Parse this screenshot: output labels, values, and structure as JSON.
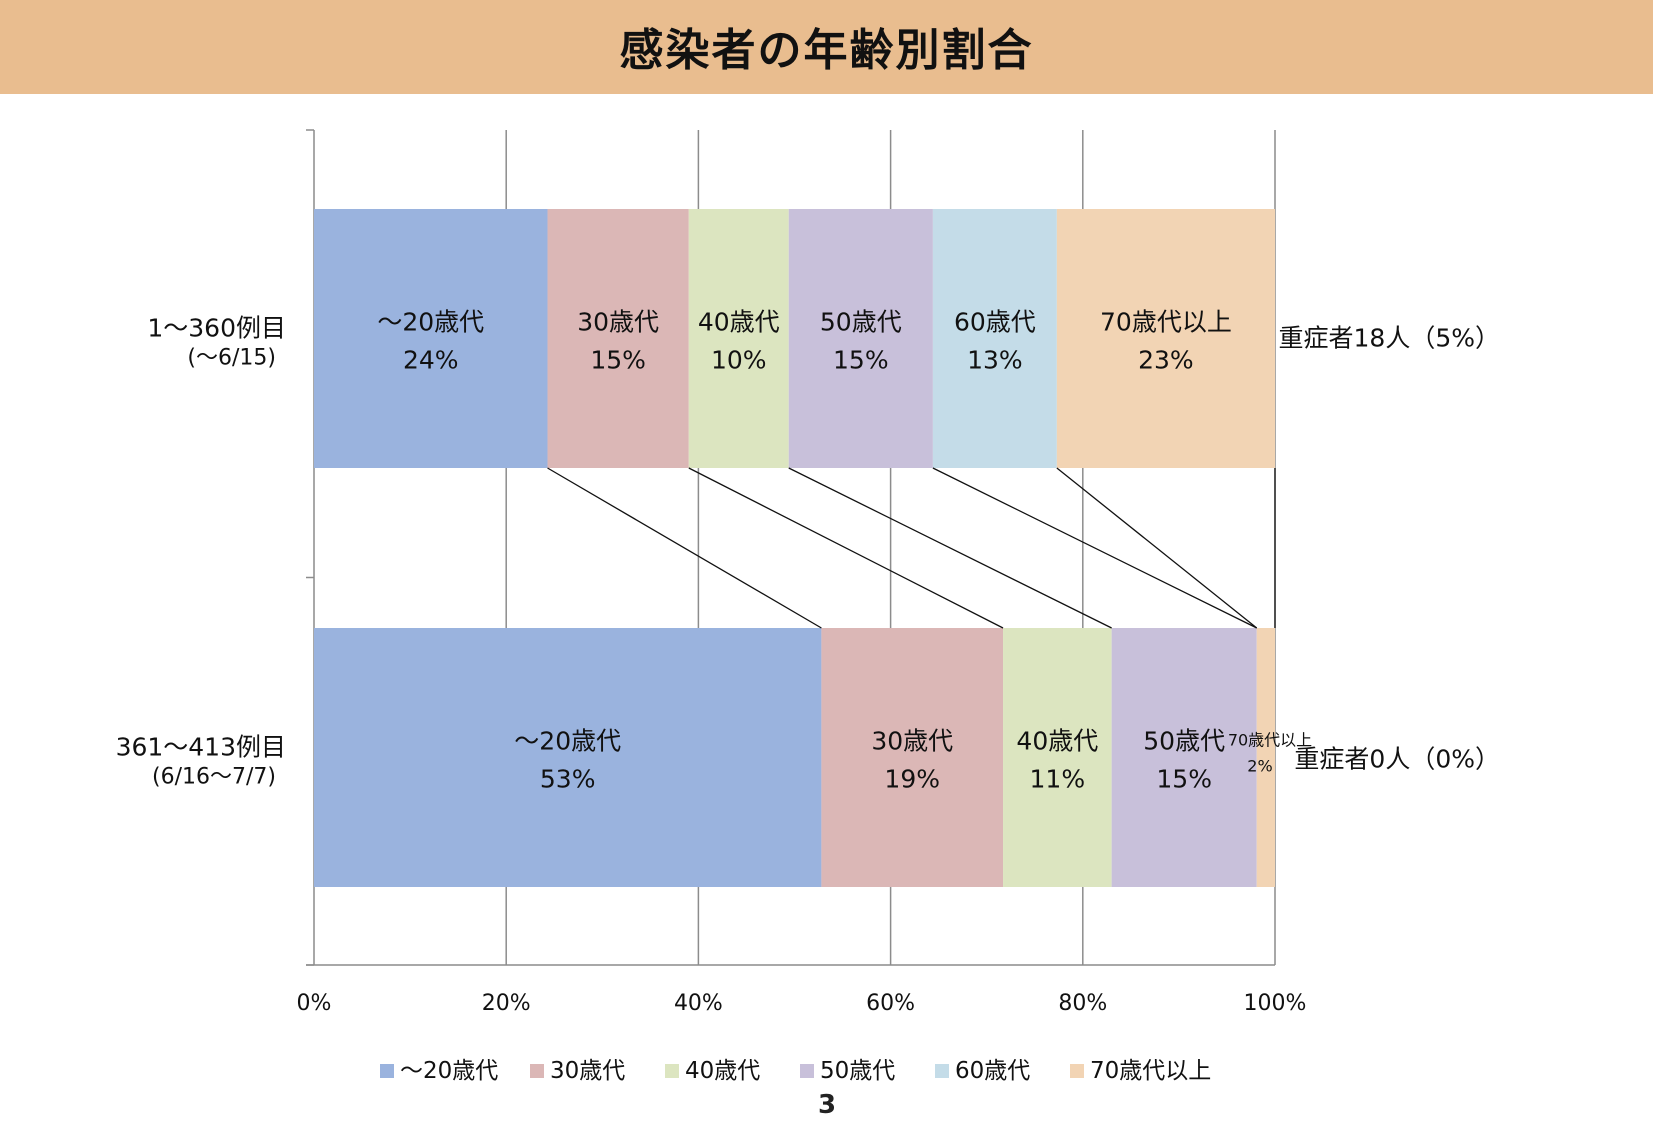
{
  "title": "感染者の年齢別割合",
  "page_number": "3",
  "colors": {
    "～20歳代": "#9ab3de",
    "30歳代": "#dbb7b6",
    "40歳代": "#dce5c0",
    "50歳代": "#c8c0da",
    "60歳代": "#c4dce8",
    "70歳代以上": "#f2d4b4"
  },
  "chart_data": {
    "type": "bar",
    "orientation": "horizontal",
    "stacked": "percent",
    "title": "感染者の年齢別割合",
    "xlabel": "",
    "ylabel": "",
    "xlim": [
      0,
      100
    ],
    "x_ticks": [
      "0%",
      "20%",
      "40%",
      "60%",
      "80%",
      "100%"
    ],
    "grid": true,
    "legend_position": "bottom",
    "categories": [
      {
        "label": "1～360例目",
        "sublabel": "(～6/15)",
        "note": "重症者18人（5%）"
      },
      {
        "label": "361～413例目",
        "sublabel": "(6/16～7/7)",
        "note": "重症者0人（0%）"
      }
    ],
    "series": [
      {
        "name": "～20歳代",
        "values": [
          24.3,
          52.8
        ],
        "labels": [
          "24%",
          "53%"
        ]
      },
      {
        "name": "30歳代",
        "values": [
          14.7,
          18.9
        ],
        "labels": [
          "15%",
          "19%"
        ]
      },
      {
        "name": "40歳代",
        "values": [
          10.4,
          11.3
        ],
        "labels": [
          "10%",
          "11%"
        ]
      },
      {
        "name": "50歳代",
        "values": [
          15.0,
          15.1
        ],
        "labels": [
          "15%",
          "15%"
        ]
      },
      {
        "name": "60歳代",
        "values": [
          12.9,
          0
        ],
        "labels": [
          "13%",
          ""
        ]
      },
      {
        "name": "70歳代以上",
        "values": [
          22.7,
          1.9
        ],
        "labels": [
          "23%",
          "2%"
        ]
      }
    ]
  }
}
